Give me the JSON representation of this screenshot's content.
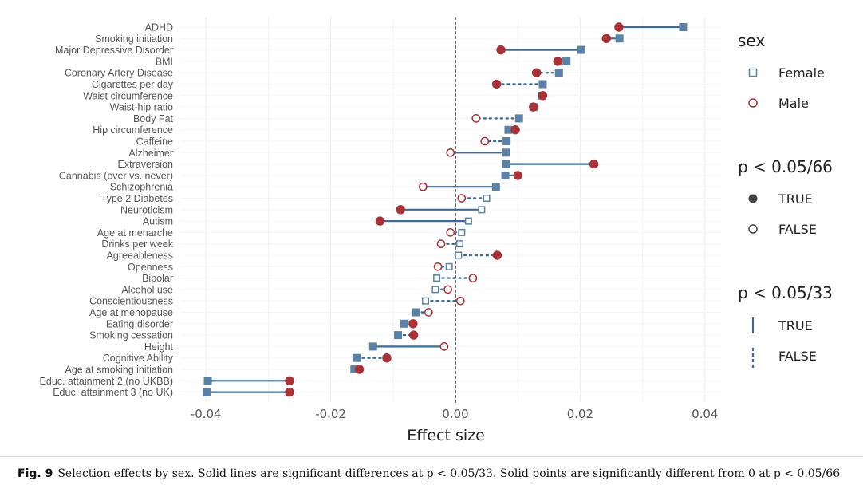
{
  "chart_data": {
    "type": "scatter",
    "xlabel": "Effect size",
    "xlim": [
      -0.045,
      0.045
    ],
    "x_ticks": [
      {
        "value": -0.04,
        "label": "-0.04"
      },
      {
        "value": -0.02,
        "label": "-0.02"
      },
      {
        "value": 0.0,
        "label": "0.00"
      },
      {
        "value": 0.02,
        "label": "0.02"
      },
      {
        "value": 0.04,
        "label": "0.04"
      }
    ],
    "reference_line_x": 0,
    "grid": true,
    "colors": {
      "female": "#5b82a6",
      "male": "#a83236",
      "segment": "#3f6a91",
      "reference": "#555555"
    },
    "rows": [
      {
        "trait": "ADHD",
        "female": 0.0365,
        "female_sig": true,
        "male": 0.0262,
        "male_sig": true,
        "diff_sig": true
      },
      {
        "trait": "Smoking initiation",
        "female": 0.0263,
        "female_sig": true,
        "male": 0.0242,
        "male_sig": true,
        "diff_sig": true
      },
      {
        "trait": "Major Depressive Disorder",
        "female": 0.0202,
        "female_sig": true,
        "male": 0.0073,
        "male_sig": true,
        "diff_sig": true
      },
      {
        "trait": "BMI",
        "female": 0.0178,
        "female_sig": true,
        "male": 0.0164,
        "male_sig": true,
        "diff_sig": true
      },
      {
        "trait": "Coronary Artery Disease",
        "female": 0.0166,
        "female_sig": true,
        "male": 0.013,
        "male_sig": true,
        "diff_sig": false
      },
      {
        "trait": "Cigarettes per day",
        "female": 0.014,
        "female_sig": true,
        "male": 0.0066,
        "male_sig": true,
        "diff_sig": false
      },
      {
        "trait": "Waist circumference",
        "female": 0.0139,
        "female_sig": true,
        "male": 0.014,
        "male_sig": true,
        "diff_sig": true
      },
      {
        "trait": "Waist-hip ratio",
        "female": 0.0125,
        "female_sig": true,
        "male": 0.0125,
        "male_sig": true,
        "diff_sig": true
      },
      {
        "trait": "Body Fat",
        "female": 0.0102,
        "female_sig": true,
        "male": 0.0033,
        "male_sig": false,
        "diff_sig": false
      },
      {
        "trait": "Hip circumference",
        "female": 0.0085,
        "female_sig": true,
        "male": 0.0096,
        "male_sig": true,
        "diff_sig": true
      },
      {
        "trait": "Caffeine",
        "female": 0.0082,
        "female_sig": true,
        "male": 0.0047,
        "male_sig": false,
        "diff_sig": false
      },
      {
        "trait": "Alzheimer",
        "female": 0.0081,
        "female_sig": true,
        "male": -0.0008,
        "male_sig": false,
        "diff_sig": true
      },
      {
        "trait": "Extraversion",
        "female": 0.0081,
        "female_sig": true,
        "male": 0.0222,
        "male_sig": true,
        "diff_sig": true
      },
      {
        "trait": "Cannabis (ever vs. never)",
        "female": 0.008,
        "female_sig": true,
        "male": 0.01,
        "male_sig": true,
        "diff_sig": true
      },
      {
        "trait": "Schizophrenia",
        "female": 0.0065,
        "female_sig": true,
        "male": -0.0052,
        "male_sig": false,
        "diff_sig": true
      },
      {
        "trait": "Type 2 Diabetes",
        "female": 0.005,
        "female_sig": false,
        "male": 0.001,
        "male_sig": false,
        "diff_sig": false
      },
      {
        "trait": "Neuroticism",
        "female": 0.0042,
        "female_sig": false,
        "male": -0.0088,
        "male_sig": true,
        "diff_sig": true
      },
      {
        "trait": "Autism",
        "female": 0.0021,
        "female_sig": false,
        "male": -0.0121,
        "male_sig": true,
        "diff_sig": true
      },
      {
        "trait": "Age at menarche",
        "female": 0.001,
        "female_sig": false,
        "male": -0.0008,
        "male_sig": false,
        "diff_sig": false
      },
      {
        "trait": "Drinks per week",
        "female": 0.0007,
        "female_sig": false,
        "male": -0.0023,
        "male_sig": false,
        "diff_sig": false
      },
      {
        "trait": "Agreeableness",
        "female": 0.0005,
        "female_sig": false,
        "male": 0.0067,
        "male_sig": true,
        "diff_sig": false
      },
      {
        "trait": "Openness",
        "female": -0.001,
        "female_sig": false,
        "male": -0.0028,
        "male_sig": false,
        "diff_sig": false
      },
      {
        "trait": "Bipolar",
        "female": -0.003,
        "female_sig": false,
        "male": 0.0028,
        "male_sig": false,
        "diff_sig": false
      },
      {
        "trait": "Alcohol use",
        "female": -0.0032,
        "female_sig": false,
        "male": -0.0012,
        "male_sig": false,
        "diff_sig": false
      },
      {
        "trait": "Conscientiousness",
        "female": -0.0048,
        "female_sig": false,
        "male": 0.0008,
        "male_sig": false,
        "diff_sig": false
      },
      {
        "trait": "Age at menopause",
        "female": -0.0063,
        "female_sig": true,
        "male": -0.0043,
        "male_sig": false,
        "diff_sig": false
      },
      {
        "trait": "Eating disorder",
        "female": -0.0082,
        "female_sig": true,
        "male": -0.0068,
        "male_sig": true,
        "diff_sig": false
      },
      {
        "trait": "Smoking cessation",
        "female": -0.0092,
        "female_sig": true,
        "male": -0.0067,
        "male_sig": true,
        "diff_sig": false
      },
      {
        "trait": "Height",
        "female": -0.0132,
        "female_sig": true,
        "male": -0.0018,
        "male_sig": false,
        "diff_sig": true
      },
      {
        "trait": "Cognitive Ability",
        "female": -0.0158,
        "female_sig": true,
        "male": -0.011,
        "male_sig": true,
        "diff_sig": false
      },
      {
        "trait": "Age at smoking initiation",
        "female": -0.0162,
        "female_sig": true,
        "male": -0.0154,
        "male_sig": true,
        "diff_sig": true
      },
      {
        "trait": "Educ. attainment 2 (no UKBB)",
        "female": -0.0397,
        "female_sig": true,
        "male": -0.0266,
        "male_sig": true,
        "diff_sig": true
      },
      {
        "trait": "Educ. attainment 3 (no UK)",
        "female": -0.0399,
        "female_sig": true,
        "male": -0.0266,
        "male_sig": true,
        "diff_sig": true
      }
    ],
    "legend": {
      "sex": {
        "title": "sex",
        "items": [
          {
            "label": "Female",
            "marker": "square"
          },
          {
            "label": "Male",
            "marker": "circle"
          }
        ]
      },
      "points": {
        "title": "p < 0.05/66",
        "items": [
          {
            "label": "TRUE",
            "style": "filled"
          },
          {
            "label": "FALSE",
            "style": "open"
          }
        ]
      },
      "lines": {
        "title": "p < 0.05/33",
        "items": [
          {
            "label": "TRUE",
            "style": "solid"
          },
          {
            "label": "FALSE",
            "style": "dotted"
          }
        ]
      }
    }
  },
  "caption": {
    "label": "Fig. 9",
    "text": "Selection effects by sex. Solid lines are significant differences at p < 0.05/33. Solid points are significantly different from 0 at p < 0.05/66"
  }
}
